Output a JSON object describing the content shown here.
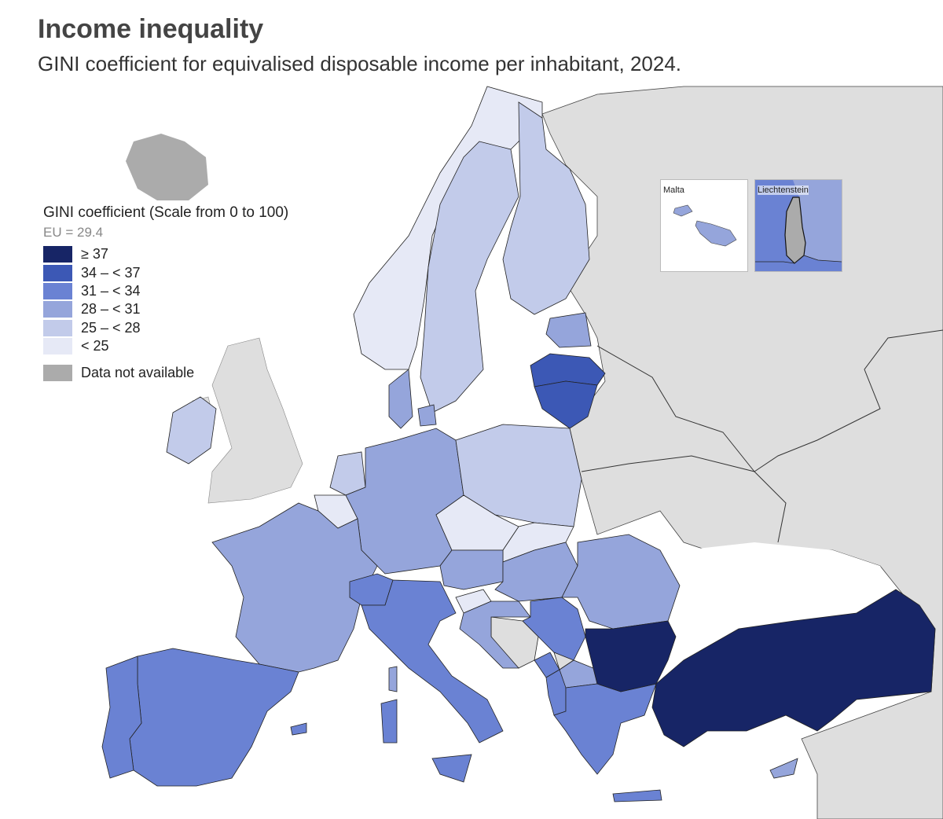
{
  "title": "Income inequality",
  "subtitle": "GINI coefficient for equivalised disposable income per inhabitant, 2024.",
  "legend": {
    "title": "GINI coefficient (Scale from 0 to 100)",
    "eu": "EU = 29.4",
    "classes": [
      {
        "label": "≥ 37",
        "color": "#172566"
      },
      {
        "label": "34 – < 37",
        "color": "#3c58b5"
      },
      {
        "label": "31 – < 34",
        "color": "#6a82d3"
      },
      {
        "label": "28 – < 31",
        "color": "#95a5db"
      },
      {
        "label": "25 – < 28",
        "color": "#c2cbea"
      },
      {
        "label": "< 25",
        "color": "#e6e9f6"
      }
    ],
    "na_label": "Data not available",
    "na_color": "#ababab"
  },
  "insets": {
    "malta": "Malta",
    "liechtenstein": "Liechtenstein"
  },
  "colors": {
    "sea": "#ffffff",
    "non_eu_land": "#dedede",
    "not_available": "#ababab",
    "border": "#1a1a1a"
  },
  "regions": [
    {
      "name": "Norway",
      "class": "< 25"
    },
    {
      "name": "Sweden",
      "class": "25 – < 28"
    },
    {
      "name": "Finland",
      "class": "25 – < 28"
    },
    {
      "name": "Denmark",
      "class": "28 – < 31"
    },
    {
      "name": "Estonia",
      "class": "28 – < 31"
    },
    {
      "name": "Latvia",
      "class": "34 – < 37"
    },
    {
      "name": "Lithuania",
      "class": "34 – < 37"
    },
    {
      "name": "Ireland",
      "class": "25 – < 28"
    },
    {
      "name": "Netherlands",
      "class": "25 – < 28"
    },
    {
      "name": "Belgium",
      "class": "< 25"
    },
    {
      "name": "Luxembourg",
      "class": "28 – < 31"
    },
    {
      "name": "Germany",
      "class": "28 – < 31"
    },
    {
      "name": "Poland",
      "class": "25 – < 28"
    },
    {
      "name": "Czechia",
      "class": "< 25"
    },
    {
      "name": "Slovakia",
      "class": "< 25"
    },
    {
      "name": "Austria",
      "class": "28 – < 31"
    },
    {
      "name": "Hungary",
      "class": "28 – < 31"
    },
    {
      "name": "Romania",
      "class": "28 – < 31"
    },
    {
      "name": "France",
      "class": "28 – < 31"
    },
    {
      "name": "Switzerland",
      "class": "31 – < 34"
    },
    {
      "name": "Italy",
      "class": "31 – < 34"
    },
    {
      "name": "Slovenia",
      "class": "< 25"
    },
    {
      "name": "Croatia",
      "class": "28 – < 31"
    },
    {
      "name": "Serbia",
      "class": "31 – < 34"
    },
    {
      "name": "Montenegro",
      "class": "31 – < 34"
    },
    {
      "name": "Albania",
      "class": "31 – < 34"
    },
    {
      "name": "North Macedonia",
      "class": "28 – < 31"
    },
    {
      "name": "Greece",
      "class": "31 – < 34"
    },
    {
      "name": "Bulgaria",
      "class": "≥ 37"
    },
    {
      "name": "Türkiye",
      "class": "≥ 37"
    },
    {
      "name": "Spain",
      "class": "31 – < 34"
    },
    {
      "name": "Portugal",
      "class": "31 – < 34"
    },
    {
      "name": "Malta",
      "class": "28 – < 31"
    },
    {
      "name": "Cyprus",
      "class": "28 – < 31"
    },
    {
      "name": "Liechtenstein",
      "class": "Data not available"
    },
    {
      "name": "Iceland",
      "class": "Data not available"
    },
    {
      "name": "Bosnia and Herzegovina",
      "class": "Data not available"
    },
    {
      "name": "Kosovo",
      "class": "Data not available"
    }
  ]
}
